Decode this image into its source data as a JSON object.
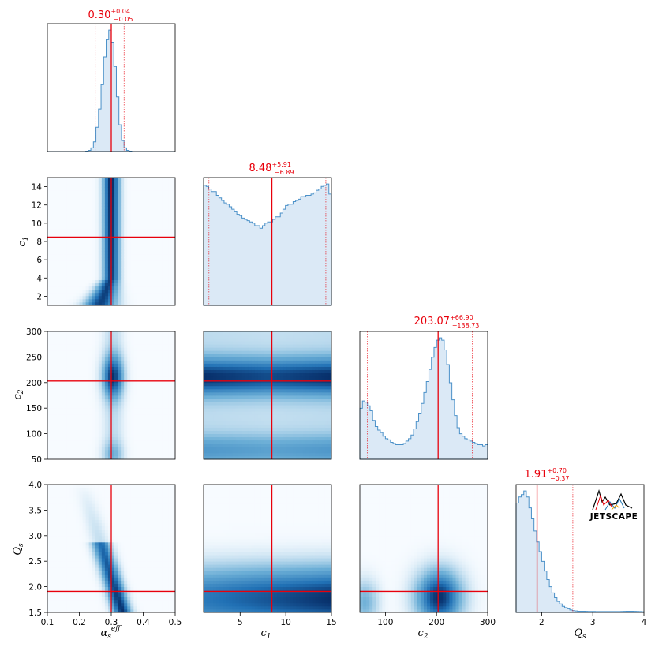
{
  "chart_data": {
    "type": "corner",
    "colors": {
      "hist_line": "#4a90c8",
      "hist_fill": "#dbe9f6",
      "marker": "#e8000b",
      "density_high": "#08306b",
      "density_low": "#f7fbff"
    },
    "variables": [
      {
        "key": "alpha",
        "label_main": "α",
        "label_sub": "s",
        "label_sup": "eff",
        "range": [
          0.1,
          0.5
        ],
        "ticks": [
          0.1,
          0.2,
          0.3,
          0.4,
          0.5
        ],
        "tick_labels": [
          "0.1",
          "0.2",
          "0.3",
          "0.4",
          "0.5"
        ]
      },
      {
        "key": "c1",
        "label_main": "c",
        "label_sub": "1",
        "label_sup": "",
        "range": [
          1,
          15
        ],
        "ticks": [
          2,
          4,
          6,
          8,
          10,
          12,
          14
        ],
        "tick_labels": [
          "2",
          "4",
          "6",
          "8",
          "10",
          "12",
          "14"
        ],
        "bottom_ticks": [
          5,
          10,
          15
        ],
        "bottom_tick_labels": [
          "5",
          "10",
          "15"
        ]
      },
      {
        "key": "c2",
        "label_main": "c",
        "label_sub": "2",
        "label_sup": "",
        "range": [
          50,
          300
        ],
        "ticks": [
          50,
          100,
          150,
          200,
          250,
          300
        ],
        "tick_labels": [
          "50",
          "100",
          "150",
          "200",
          "250",
          "300"
        ],
        "bottom_ticks": [
          100,
          200,
          300
        ],
        "bottom_tick_labels": [
          "100",
          "200",
          "300"
        ]
      },
      {
        "key": "Qs",
        "label_main": "Q",
        "label_sub": "s",
        "label_sup": "",
        "range": [
          1.5,
          4.0
        ],
        "ticks": [
          1.5,
          2.0,
          2.5,
          3.0,
          3.5,
          4.0
        ],
        "tick_labels": [
          "1.5",
          "2.0",
          "2.5",
          "3.0",
          "3.5",
          "4.0"
        ],
        "bottom_ticks": [
          2,
          3,
          4
        ],
        "bottom_tick_labels": [
          "2",
          "3",
          "4"
        ]
      }
    ],
    "estimates": [
      {
        "median": 0.3,
        "lo": 0.25,
        "hi": 0.34,
        "value_label": "0.30",
        "plus_label": "+0.04",
        "minus_label": "−0.05"
      },
      {
        "median": 8.48,
        "lo": 1.59,
        "hi": 14.39,
        "value_label": "8.48",
        "plus_label": "+5.91",
        "minus_label": "−6.89"
      },
      {
        "median": 203.07,
        "lo": 64.34,
        "hi": 269.97,
        "value_label": "203.07",
        "plus_label": "+66.90",
        "minus_label": "−138.73"
      },
      {
        "median": 1.91,
        "lo": 1.54,
        "hi": 2.61,
        "value_label": "1.91",
        "plus_label": "+0.70",
        "minus_label": "−0.37"
      }
    ],
    "histograms": [
      {
        "var": "alpha",
        "bins": 50,
        "values": [
          0,
          0,
          0,
          0,
          0,
          0,
          0,
          0,
          0,
          0,
          0,
          0,
          0,
          0,
          0,
          0.003,
          0.01,
          0.03,
          0.08,
          0.2,
          0.35,
          0.55,
          0.78,
          0.92,
          1.0,
          0.9,
          0.7,
          0.45,
          0.22,
          0.09,
          0.03,
          0.01,
          0.003,
          0,
          0,
          0,
          0,
          0,
          0,
          0,
          0,
          0,
          0,
          0,
          0,
          0,
          0,
          0,
          0,
          0
        ]
      },
      {
        "var": "c1",
        "bins": 50,
        "values": [
          0.95,
          0.94,
          0.92,
          0.9,
          0.9,
          0.87,
          0.85,
          0.83,
          0.81,
          0.8,
          0.78,
          0.76,
          0.74,
          0.72,
          0.71,
          0.69,
          0.68,
          0.67,
          0.66,
          0.65,
          0.63,
          0.63,
          0.61,
          0.63,
          0.65,
          0.66,
          0.66,
          0.68,
          0.7,
          0.7,
          0.73,
          0.76,
          0.79,
          0.8,
          0.8,
          0.82,
          0.83,
          0.84,
          0.86,
          0.86,
          0.87,
          0.87,
          0.88,
          0.89,
          0.91,
          0.92,
          0.94,
          0.95,
          0.96,
          0.88
        ]
      },
      {
        "var": "c2",
        "bins": 50,
        "values": [
          0.42,
          0.48,
          0.47,
          0.44,
          0.4,
          0.32,
          0.27,
          0.24,
          0.22,
          0.19,
          0.17,
          0.16,
          0.14,
          0.13,
          0.12,
          0.12,
          0.12,
          0.13,
          0.15,
          0.17,
          0.2,
          0.25,
          0.31,
          0.38,
          0.46,
          0.55,
          0.64,
          0.74,
          0.84,
          0.92,
          0.98,
          1.0,
          0.98,
          0.9,
          0.78,
          0.63,
          0.49,
          0.36,
          0.26,
          0.21,
          0.19,
          0.17,
          0.16,
          0.15,
          0.14,
          0.13,
          0.12,
          0.12,
          0.11,
          0.12
        ]
      },
      {
        "var": "Qs",
        "bins": 50,
        "values": [
          0.9,
          0.95,
          0.97,
          1.0,
          0.95,
          0.86,
          0.77,
          0.67,
          0.58,
          0.5,
          0.42,
          0.34,
          0.27,
          0.21,
          0.16,
          0.12,
          0.09,
          0.07,
          0.05,
          0.04,
          0.03,
          0.02,
          0.015,
          0.012,
          0.01,
          0.01,
          0.01,
          0.009,
          0.008,
          0.008,
          0.008,
          0.007,
          0.007,
          0.007,
          0.007,
          0.007,
          0.007,
          0.007,
          0.007,
          0.007,
          0.007,
          0.008,
          0.009,
          0.01,
          0.01,
          0.01,
          0.009,
          0.008,
          0.007,
          0.006
        ]
      }
    ],
    "density_panels": [
      {
        "x": "alpha",
        "y": "c1",
        "description": "vertical band near alpha 0.30, widening and shifting left at low c1"
      },
      {
        "x": "alpha",
        "y": "c2",
        "description": "blob near alpha 0.30, c2 210; weak blob near c2 65"
      },
      {
        "x": "c1",
        "y": "c2",
        "description": "horizontal band at c2 ~210 across c1; weak band at c2 ~65"
      },
      {
        "x": "alpha",
        "y": "Qs",
        "description": "diagonal band from alpha 0.27 Qs 2.6 to alpha 0.33 Qs 1.6"
      },
      {
        "x": "c1",
        "y": "Qs",
        "description": "dense at low Qs, stronger at high c1"
      },
      {
        "x": "c2",
        "y": "Qs",
        "description": "blob at c2 ~205, Qs ~1.8; weak at c2 ~60"
      }
    ]
  },
  "logo": {
    "text": "JETSCAPE"
  }
}
